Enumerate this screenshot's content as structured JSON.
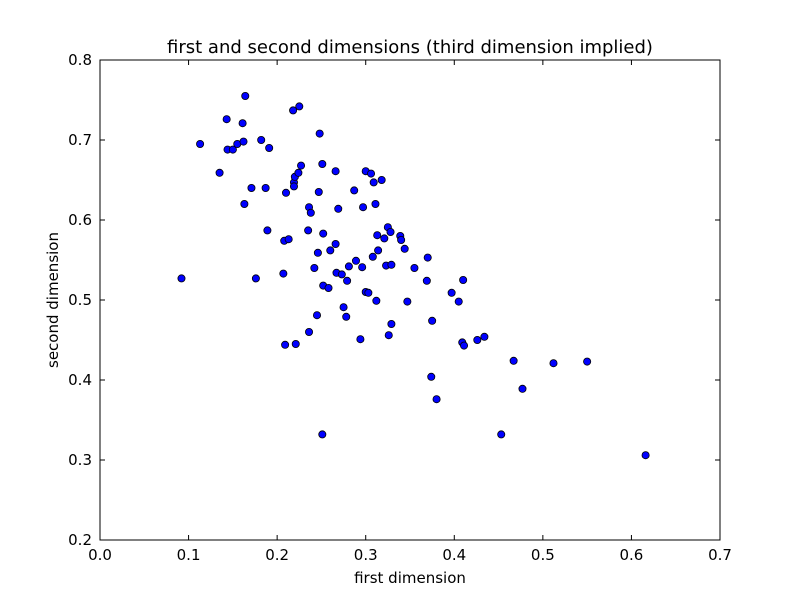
{
  "chart_data": {
    "type": "scatter",
    "title": "first and second dimensions (third dimension implied)",
    "xlabel": "first dimension",
    "ylabel": "second dimension",
    "xlim": [
      0.0,
      0.7
    ],
    "ylim": [
      0.2,
      0.8
    ],
    "xticks": [
      "0.0",
      "0.1",
      "0.2",
      "0.3",
      "0.4",
      "0.5",
      "0.6",
      "0.7"
    ],
    "yticks": [
      "0.2",
      "0.3",
      "0.4",
      "0.5",
      "0.6",
      "0.7",
      "0.8"
    ],
    "grid": false,
    "colors": {
      "marker_fill": "#0000ff",
      "marker_edge": "#000000"
    },
    "points": [
      [
        0.092,
        0.527
      ],
      [
        0.113,
        0.695
      ],
      [
        0.135,
        0.659
      ],
      [
        0.144,
        0.688
      ],
      [
        0.143,
        0.726
      ],
      [
        0.15,
        0.688
      ],
      [
        0.155,
        0.695
      ],
      [
        0.161,
        0.721
      ],
      [
        0.162,
        0.698
      ],
      [
        0.163,
        0.62
      ],
      [
        0.164,
        0.755
      ],
      [
        0.171,
        0.64
      ],
      [
        0.176,
        0.527
      ],
      [
        0.182,
        0.7
      ],
      [
        0.187,
        0.64
      ],
      [
        0.189,
        0.587
      ],
      [
        0.191,
        0.69
      ],
      [
        0.207,
        0.533
      ],
      [
        0.208,
        0.574
      ],
      [
        0.209,
        0.444
      ],
      [
        0.21,
        0.634
      ],
      [
        0.213,
        0.576
      ],
      [
        0.218,
        0.737
      ],
      [
        0.219,
        0.647
      ],
      [
        0.22,
        0.654
      ],
      [
        0.219,
        0.642
      ],
      [
        0.221,
        0.445
      ],
      [
        0.224,
        0.659
      ],
      [
        0.225,
        0.742
      ],
      [
        0.227,
        0.668
      ],
      [
        0.235,
        0.587
      ],
      [
        0.236,
        0.46
      ],
      [
        0.236,
        0.616
      ],
      [
        0.238,
        0.609
      ],
      [
        0.242,
        0.54
      ],
      [
        0.245,
        0.481
      ],
      [
        0.246,
        0.559
      ],
      [
        0.247,
        0.635
      ],
      [
        0.248,
        0.708
      ],
      [
        0.251,
        0.67
      ],
      [
        0.252,
        0.518
      ],
      [
        0.252,
        0.583
      ],
      [
        0.251,
        0.332
      ],
      [
        0.258,
        0.515
      ],
      [
        0.26,
        0.562
      ],
      [
        0.266,
        0.661
      ],
      [
        0.266,
        0.57
      ],
      [
        0.267,
        0.534
      ],
      [
        0.269,
        0.614
      ],
      [
        0.273,
        0.532
      ],
      [
        0.275,
        0.491
      ],
      [
        0.278,
        0.479
      ],
      [
        0.279,
        0.524
      ],
      [
        0.281,
        0.542
      ],
      [
        0.287,
        0.637
      ],
      [
        0.289,
        0.549
      ],
      [
        0.294,
        0.451
      ],
      [
        0.296,
        0.541
      ],
      [
        0.297,
        0.616
      ],
      [
        0.3,
        0.661
      ],
      [
        0.3,
        0.51
      ],
      [
        0.303,
        0.509
      ],
      [
        0.306,
        0.658
      ],
      [
        0.308,
        0.554
      ],
      [
        0.309,
        0.647
      ],
      [
        0.311,
        0.62
      ],
      [
        0.312,
        0.499
      ],
      [
        0.313,
        0.581
      ],
      [
        0.314,
        0.562
      ],
      [
        0.318,
        0.65
      ],
      [
        0.321,
        0.577
      ],
      [
        0.323,
        0.543
      ],
      [
        0.325,
        0.591
      ],
      [
        0.326,
        0.456
      ],
      [
        0.328,
        0.585
      ],
      [
        0.329,
        0.544
      ],
      [
        0.329,
        0.47
      ],
      [
        0.339,
        0.58
      ],
      [
        0.34,
        0.575
      ],
      [
        0.344,
        0.564
      ],
      [
        0.347,
        0.498
      ],
      [
        0.355,
        0.54
      ],
      [
        0.369,
        0.524
      ],
      [
        0.37,
        0.553
      ],
      [
        0.374,
        0.404
      ],
      [
        0.375,
        0.474
      ],
      [
        0.38,
        0.376
      ],
      [
        0.397,
        0.509
      ],
      [
        0.405,
        0.498
      ],
      [
        0.409,
        0.447
      ],
      [
        0.41,
        0.525
      ],
      [
        0.411,
        0.443
      ],
      [
        0.426,
        0.45
      ],
      [
        0.434,
        0.454
      ],
      [
        0.453,
        0.332
      ],
      [
        0.467,
        0.424
      ],
      [
        0.477,
        0.389
      ],
      [
        0.512,
        0.421
      ],
      [
        0.55,
        0.423
      ],
      [
        0.616,
        0.306
      ]
    ]
  }
}
